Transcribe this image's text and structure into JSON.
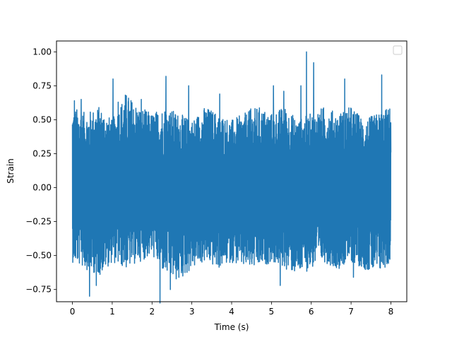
{
  "chart_data": {
    "type": "line",
    "title": "",
    "xlabel": "Time (s)",
    "ylabel": "Strain",
    "xlim": [
      -0.4,
      8.4
    ],
    "ylim": [
      -0.84,
      1.08
    ],
    "xticks": [
      0,
      1,
      2,
      3,
      4,
      5,
      6,
      7,
      8
    ],
    "xtick_labels": [
      "0",
      "1",
      "2",
      "3",
      "4",
      "5",
      "6",
      "7",
      "8"
    ],
    "yticks": [
      -0.75,
      -0.5,
      -0.25,
      0.0,
      0.25,
      0.5,
      0.75,
      1.0
    ],
    "ytick_labels": [
      "−0.75",
      "−0.50",
      "−0.25",
      "0.00",
      "0.25",
      "0.50",
      "0.75",
      "1.00"
    ],
    "grid": false,
    "legend": {
      "position": "top-right",
      "entries": []
    },
    "series": [
      {
        "color": "#1f77b4",
        "x_start": 0,
        "x_end": 8,
        "x": [
          0.05,
          0.22,
          0.43,
          0.6,
          1.02,
          1.15,
          1.73,
          2.2,
          2.35,
          2.46,
          2.92,
          3.7,
          4.48,
          5.05,
          5.22,
          5.31,
          5.74,
          5.88,
          6.06,
          6.84,
          7.06,
          7.77,
          7.9,
          8.0
        ],
        "y": [
          0.64,
          0.65,
          -0.8,
          -0.72,
          0.8,
          0.63,
          0.65,
          -0.85,
          0.82,
          -0.75,
          0.75,
          0.69,
          0.58,
          0.75,
          -0.72,
          0.71,
          0.75,
          1.0,
          0.92,
          0.8,
          -0.66,
          0.83,
          -0.56,
          0.26
        ],
        "upper_envelope": [
          0.6,
          0.55,
          0.6,
          0.5,
          0.7,
          0.6,
          0.55,
          0.6,
          0.55,
          0.5,
          0.6,
          0.55,
          0.5,
          0.55,
          0.6,
          0.55,
          0.6,
          0.5,
          0.55,
          0.6,
          0.55,
          0.6,
          0.5,
          0.55,
          0.6
        ],
        "lower_envelope": [
          -0.55,
          -0.6,
          -0.65,
          -0.55,
          -0.6,
          -0.55,
          -0.5,
          -0.65,
          -0.7,
          -0.6,
          -0.55,
          -0.6,
          -0.55,
          -0.6,
          -0.6,
          -0.55,
          -0.6,
          -0.65,
          -0.6,
          -0.55,
          -0.6,
          -0.55,
          -0.6,
          -0.65,
          -0.55
        ]
      }
    ]
  }
}
